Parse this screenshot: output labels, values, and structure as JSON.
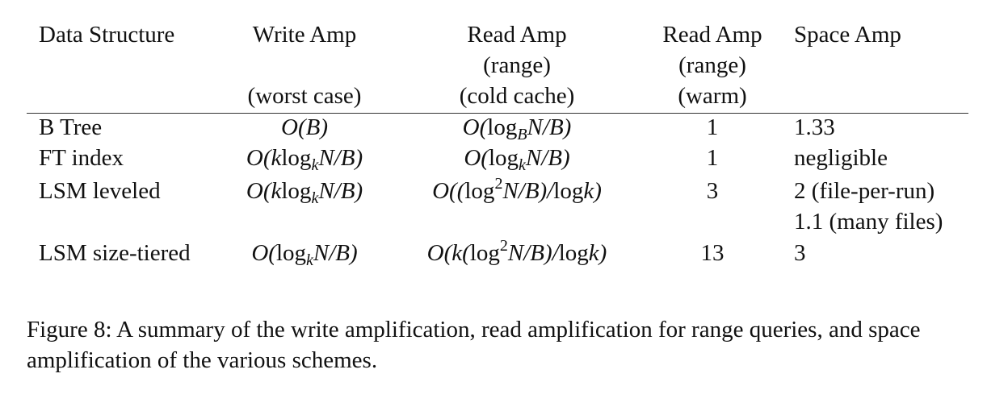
{
  "table": {
    "headers": {
      "data_structure": "Data Structure",
      "write_amp": [
        "Write Amp",
        "",
        "(worst case)"
      ],
      "read_amp_cold": [
        "Read Amp",
        "(range)",
        "(cold cache)"
      ],
      "read_amp_warm": [
        "Read Amp",
        "(range)",
        "(warm)"
      ],
      "space_amp": "Space Amp"
    },
    "rows": [
      {
        "name": "B Tree",
        "write": "O(B)",
        "read_cold": "O(log_B N/B)",
        "read_warm": "1",
        "space": [
          "1.33"
        ]
      },
      {
        "name": "FT index",
        "write": "O(k log_k N/B)",
        "read_cold": "O(log_k N/B)",
        "read_warm": "1",
        "space": [
          "negligible"
        ]
      },
      {
        "name": "LSM leveled",
        "write": "O(k log_k N/B)",
        "read_cold": "O((log^2 N/B)/log k)",
        "read_warm": "3",
        "space": [
          "2 (file-per-run)",
          "1.1 (many files)"
        ]
      },
      {
        "name": "LSM size-tiered",
        "write": "O(log_k N/B)",
        "read_cold": "O(k(log^2 N/B)/log k)",
        "read_warm": "13",
        "space": [
          "3"
        ]
      }
    ]
  },
  "caption": "Figure 8: A summary of the write amplification, read amplification for range queries, and space amplification of the various schemes."
}
